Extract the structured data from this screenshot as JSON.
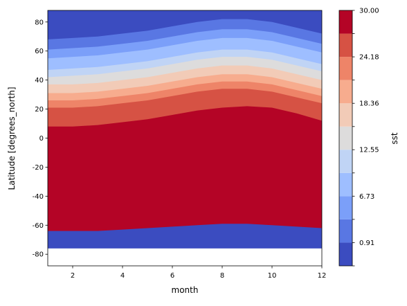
{
  "chart_data": {
    "type": "contourf",
    "xlabel": "month",
    "ylabel": "Latitude [degrees_north]",
    "xlim": [
      1,
      12
    ],
    "ylim": [
      -88,
      88
    ],
    "x_ticks": [
      2,
      4,
      6,
      8,
      10,
      12
    ],
    "y_ticks": [
      -80,
      -60,
      -40,
      -20,
      0,
      20,
      40,
      60,
      80
    ],
    "data_lat_range": [
      -76,
      88
    ],
    "colorbar": {
      "label": "sst",
      "tick_labels": [
        "0.91",
        "6.73",
        "12.55",
        "18.36",
        "24.18",
        "30.00"
      ],
      "levels": [
        -2.0,
        0.91,
        3.82,
        6.73,
        9.64,
        12.55,
        15.45,
        18.36,
        21.27,
        24.18,
        27.09,
        30.0
      ],
      "colors": [
        "#3b4cc0",
        "#5977e3",
        "#7b9ff9",
        "#9ebeff",
        "#c0d4f5",
        "#dddcdc",
        "#f2cbb7",
        "#f7ac8e",
        "#ee8468",
        "#d65244",
        "#b40426"
      ]
    },
    "months": [
      1,
      2,
      3,
      4,
      5,
      6,
      7,
      8,
      9,
      10,
      11,
      12
    ],
    "north_contour_latitudes": [
      [
        68,
        69,
        70,
        72,
        74,
        77,
        80,
        82,
        82,
        80,
        76,
        72
      ],
      [
        61,
        62,
        63,
        65,
        67,
        70,
        73,
        75,
        75,
        73,
        69,
        65
      ],
      [
        55,
        56,
        57,
        59,
        61,
        64,
        67,
        69,
        69,
        67,
        63,
        59
      ],
      [
        47,
        48,
        49,
        51,
        53,
        56,
        59,
        61,
        61,
        59,
        55,
        51
      ],
      [
        42,
        43,
        44,
        46,
        48,
        51,
        54,
        56,
        56,
        54,
        50,
        46
      ],
      [
        37,
        37,
        38,
        40,
        42,
        45,
        48,
        50,
        50,
        48,
        44,
        40
      ],
      [
        31,
        31,
        32,
        34,
        36,
        39,
        42,
        44,
        44,
        42,
        38,
        34
      ],
      [
        26,
        26,
        27,
        29,
        31,
        34,
        37,
        39,
        39,
        37,
        33,
        29
      ],
      [
        21,
        21,
        22,
        24,
        26,
        29,
        32,
        34,
        34,
        32,
        28,
        24
      ],
      [
        8,
        8,
        9,
        11,
        13,
        16,
        19,
        21,
        22,
        21,
        17,
        12
      ]
    ],
    "south_contour_latitudes": [
      [
        -13,
        -14,
        -14,
        -13,
        -11,
        -8,
        -5,
        -4,
        -3,
        -4,
        -6,
        -8
      ],
      [
        -23,
        -24,
        -24,
        -23,
        -21,
        -18,
        -16,
        -15,
        -14,
        -15,
        -17,
        -19
      ],
      [
        -28,
        -29,
        -29,
        -28,
        -27,
        -24,
        -22,
        -21,
        -20,
        -21,
        -23,
        -25
      ],
      [
        -33,
        -34,
        -34,
        -33,
        -32,
        -30,
        -28,
        -27,
        -26,
        -27,
        -29,
        -31
      ],
      [
        -38,
        -39,
        -39,
        -38,
        -37,
        -35,
        -33,
        -32,
        -31,
        -32,
        -34,
        -36
      ],
      [
        -43,
        -44,
        -44,
        -43,
        -42,
        -40,
        -38,
        -37,
        -36,
        -37,
        -39,
        -41
      ],
      [
        -48,
        -49,
        -49,
        -48,
        -47,
        -45,
        -43,
        -42,
        -41,
        -42,
        -44,
        -46
      ],
      [
        -53,
        -54,
        -54,
        -53,
        -52,
        -50,
        -48,
        -47,
        -46,
        -47,
        -49,
        -51
      ],
      [
        -59,
        -60,
        -60,
        -59,
        -58,
        -56,
        -54,
        -53,
        -52,
        -53,
        -55,
        -57
      ],
      [
        -64,
        -64,
        -64,
        -63,
        -62,
        -61,
        -60,
        -59,
        -59,
        -60,
        -61,
        -62
      ]
    ]
  }
}
